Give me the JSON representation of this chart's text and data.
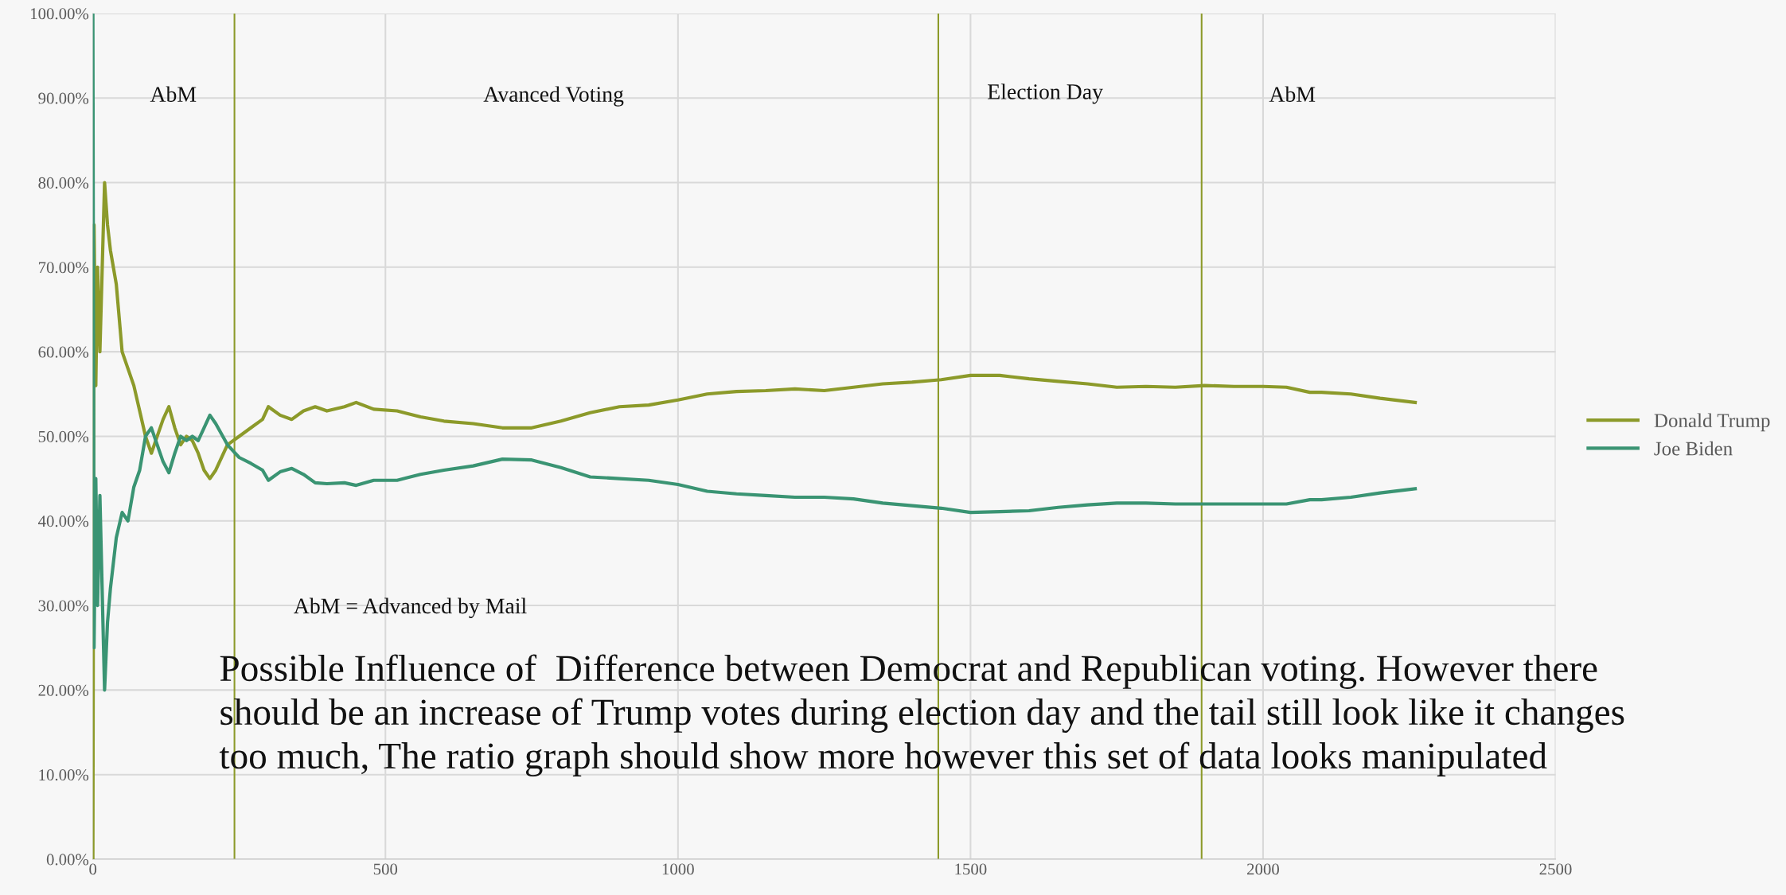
{
  "chart_data": {
    "type": "line",
    "series": [
      {
        "name": "Donald Trump",
        "color": "#8c9a2a",
        "x": [
          0,
          2,
          5,
          8,
          12,
          20,
          25,
          30,
          40,
          50,
          60,
          70,
          80,
          90,
          100,
          110,
          120,
          130,
          140,
          150,
          160,
          170,
          180,
          190,
          200,
          210,
          230,
          250,
          270,
          290,
          300,
          320,
          340,
          360,
          380,
          400,
          430,
          450,
          480,
          520,
          560,
          600,
          650,
          700,
          750,
          800,
          850,
          900,
          950,
          1000,
          1050,
          1100,
          1150,
          1200,
          1250,
          1300,
          1350,
          1400,
          1450,
          1500,
          1550,
          1600,
          1650,
          1700,
          1750,
          1800,
          1850,
          1900,
          1950,
          2000,
          2040,
          2080,
          2100,
          2150,
          2200,
          2260
        ],
        "values": [
          0,
          75,
          56,
          70,
          60,
          80,
          75,
          72,
          68,
          60,
          58,
          56,
          53,
          50,
          48,
          50,
          52,
          53.5,
          51,
          49,
          50,
          49.5,
          48,
          46,
          45,
          46,
          49,
          50,
          51,
          52,
          53.5,
          52.5,
          52,
          53,
          53.5,
          53,
          53.5,
          54,
          53.2,
          53,
          52.3,
          51.8,
          51.5,
          51,
          51,
          51.8,
          52.8,
          53.5,
          53.7,
          54.3,
          55,
          55.3,
          55.4,
          55.6,
          55.4,
          55.8,
          56.2,
          56.4,
          56.7,
          57.2,
          57.2,
          56.8,
          56.5,
          56.2,
          55.8,
          55.9,
          55.8,
          56,
          55.9,
          55.9,
          55.8,
          55.2,
          55.2,
          55,
          54.5,
          54
        ]
      },
      {
        "name": "Joe Biden",
        "color": "#3a9473",
        "x": [
          0,
          2,
          5,
          8,
          12,
          20,
          25,
          30,
          40,
          50,
          60,
          70,
          80,
          90,
          100,
          110,
          120,
          130,
          140,
          150,
          160,
          170,
          180,
          190,
          200,
          210,
          230,
          250,
          270,
          290,
          300,
          320,
          340,
          360,
          380,
          400,
          430,
          450,
          480,
          520,
          560,
          600,
          650,
          700,
          750,
          800,
          850,
          900,
          950,
          1000,
          1050,
          1100,
          1150,
          1200,
          1250,
          1300,
          1350,
          1400,
          1450,
          1500,
          1550,
          1600,
          1650,
          1700,
          1750,
          1800,
          1850,
          1900,
          1950,
          2000,
          2040,
          2080,
          2100,
          2150,
          2200,
          2260
        ],
        "values": [
          100,
          25,
          45,
          30,
          43,
          20,
          28,
          32,
          38,
          41,
          40,
          44,
          46,
          50,
          51,
          49,
          47,
          45.7,
          48,
          50,
          49.5,
          50,
          49.5,
          51,
          52.5,
          51.5,
          49,
          47.5,
          46.8,
          46,
          44.8,
          45.8,
          46.2,
          45.5,
          44.5,
          44.4,
          44.5,
          44.2,
          44.8,
          44.8,
          45.5,
          46,
          46.5,
          47.3,
          47.2,
          46.3,
          45.2,
          45,
          44.8,
          44.3,
          43.5,
          43.2,
          43,
          42.8,
          42.8,
          42.6,
          42.1,
          41.8,
          41.5,
          41,
          41.1,
          41.2,
          41.6,
          41.9,
          42.1,
          42.1,
          42,
          42,
          42,
          42,
          42,
          42.5,
          42.5,
          42.8,
          43.3,
          43.8
        ]
      }
    ],
    "xlim": [
      0,
      2500
    ],
    "xticks": [
      0,
      500,
      1000,
      1500,
      2000,
      2500
    ],
    "ylim": [
      0,
      100
    ],
    "yticks": [
      {
        "value": 0,
        "label": "0.00%"
      },
      {
        "value": 10,
        "label": "10.00%"
      },
      {
        "value": 20,
        "label": "20.00%"
      },
      {
        "value": 30,
        "label": "30.00%"
      },
      {
        "value": 40,
        "label": "40.00%"
      },
      {
        "value": 50,
        "label": "50.00%"
      },
      {
        "value": 60,
        "label": "60.00%"
      },
      {
        "value": 70,
        "label": "70.00%"
      },
      {
        "value": 80,
        "label": "80.00%"
      },
      {
        "value": 90,
        "label": "90.00%"
      },
      {
        "value": 100,
        "label": "100.00%"
      }
    ],
    "ref_lines": [
      {
        "axis": "x",
        "value": 242,
        "color": "#8c9a2a"
      },
      {
        "axis": "x",
        "value": 1445,
        "color": "#8c9a2a"
      },
      {
        "axis": "x",
        "value": 1895,
        "color": "#8c9a2a"
      }
    ],
    "annotations": [
      "AbM",
      "Avanced Voting",
      "Election Day",
      "AbM",
      "AbM = Advanced by Mail",
      "Possible Influence of  Difference between Democrat and Republican voting. However there\nshould be an increase of Trump votes during election day and the tail still look like it changes\ntoo much, The ratio graph should show more however this set of data looks manipulated"
    ],
    "grid": true,
    "legend": "right",
    "line_style": "solid",
    "marker": "none"
  }
}
